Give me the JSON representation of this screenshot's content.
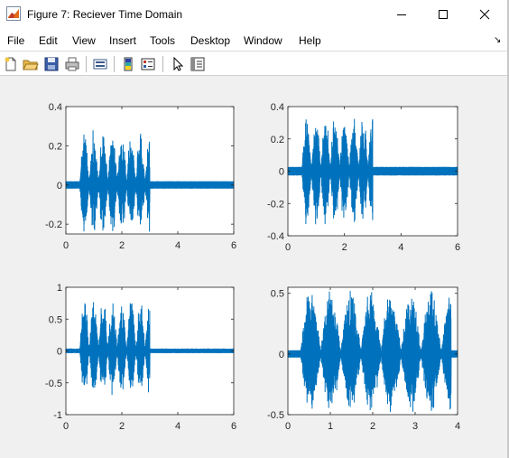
{
  "window": {
    "title": "Figure 7: Reciever Time Domain",
    "icon": "matlab-figure-icon",
    "controls": [
      "minimize-icon",
      "maximize-icon",
      "close-icon"
    ]
  },
  "menu": {
    "items": [
      "File",
      "Edit",
      "View",
      "Insert",
      "Tools",
      "Desktop",
      "Window",
      "Help"
    ],
    "dock_arrow": "↘"
  },
  "toolbar": {
    "buttons": [
      "new-figure-icon",
      "open-file-icon",
      "save-icon",
      "print-icon",
      "link-plot-icon",
      "insert-colorbar-icon",
      "insert-legend-icon",
      "pointer-icon",
      "property-inspector-icon"
    ]
  },
  "colors": {
    "line": "#0072bd",
    "figure_bg": "#f0f0f0",
    "axes_bg": "#ffffff"
  },
  "chart_data": [
    {
      "type": "line",
      "title": "",
      "xlabel": "",
      "ylabel": "",
      "xlim": [
        0,
        6
      ],
      "ylim": [
        -0.25,
        0.4
      ],
      "xticks": [
        "0",
        "2",
        "4",
        "6"
      ],
      "yticks": [
        "-0.2",
        "0",
        "0.2",
        "0.4"
      ],
      "signal": "speech-like waveform: bursts from ~0.5 to ~3.0 s, peaks ~0.28, noise floor elsewhere",
      "series": [
        {
          "color": "#0072bd",
          "x_range": [
            0,
            6
          ],
          "peak": 0.28,
          "trough": -0.25,
          "active": [
            0.5,
            3.0
          ],
          "noise": 0.015
        }
      ]
    },
    {
      "type": "line",
      "title": "",
      "xlabel": "",
      "ylabel": "",
      "xlim": [
        0,
        6
      ],
      "ylim": [
        -0.4,
        0.4
      ],
      "xticks": [
        "0",
        "2",
        "4",
        "6"
      ],
      "yticks": [
        "-0.4",
        "-0.2",
        "0",
        "0.2",
        "0.4"
      ],
      "series": [
        {
          "color": "#0072bd",
          "x_range": [
            0,
            6
          ],
          "peak": 0.34,
          "trough": -0.34,
          "active": [
            0.5,
            3.0
          ],
          "noise": 0.02
        }
      ]
    },
    {
      "type": "line",
      "title": "",
      "xlabel": "",
      "ylabel": "",
      "xlim": [
        0,
        6
      ],
      "ylim": [
        -1,
        1
      ],
      "xticks": [
        "0",
        "2",
        "4",
        "6"
      ],
      "yticks": [
        "-1",
        "-0.5",
        "0",
        "0.5",
        "1"
      ],
      "series": [
        {
          "color": "#0072bd",
          "x_range": [
            0,
            6
          ],
          "peak": 0.9,
          "trough": -0.75,
          "active": [
            0.5,
            3.0
          ],
          "noise": 0.02
        }
      ]
    },
    {
      "type": "line",
      "title": "",
      "xlabel": "",
      "ylabel": "",
      "xlim": [
        0,
        4
      ],
      "ylim": [
        -0.5,
        0.55
      ],
      "xticks": [
        "0",
        "1",
        "2",
        "3",
        "4"
      ],
      "yticks": [
        "-0.5",
        "0",
        "0.5"
      ],
      "series": [
        {
          "color": "#0072bd",
          "x_range": [
            0,
            4
          ],
          "peak": 0.55,
          "trough": -0.5,
          "active": [
            0.3,
            3.85
          ],
          "noise": 0.02
        }
      ]
    }
  ]
}
